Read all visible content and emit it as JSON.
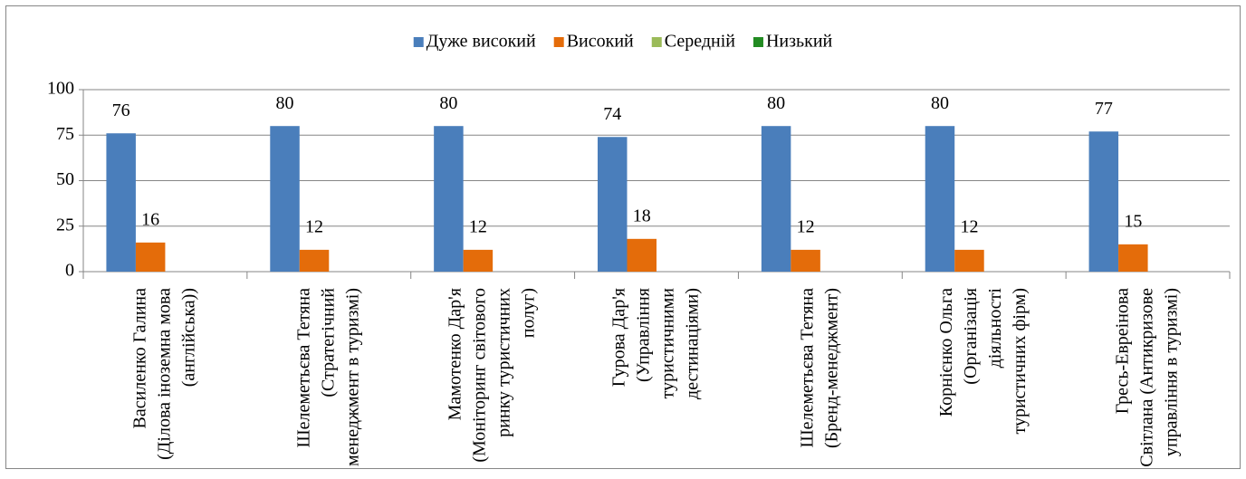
{
  "chart_data": {
    "type": "bar",
    "categories": [
      "Василенко Галина (Ділова іноземна мова (англійська))",
      "Шелеметьєва Тетяна (Стратегічний менеджмент в туризмі)",
      "Мамотенко Дар'я (Моніторинг світового ринку туристичних полуг)",
      "Гурова Дар'я (Управління туристичними дестинаціями)",
      "Шелеметьєва Тетяна (Бренд-менеджмент)",
      "Корнієнко Ольга (Організація діяльності туристичних фірм)",
      "Гресь-Евреінова Світлана (Антикризове управління в туризмі)"
    ],
    "series": [
      {
        "name": "Дуже високий",
        "color": "#4a7ebb",
        "values": [
          76,
          80,
          80,
          74,
          80,
          80,
          77
        ]
      },
      {
        "name": "Високий",
        "color": "#e46c0a",
        "values": [
          16,
          12,
          12,
          18,
          12,
          12,
          15
        ]
      },
      {
        "name": "Середній",
        "color": "#9bbb59",
        "values": [
          null,
          null,
          null,
          null,
          null,
          null,
          null
        ]
      },
      {
        "name": "Низький",
        "color": "#228b22",
        "values": [
          null,
          null,
          null,
          null,
          null,
          null,
          null
        ]
      }
    ],
    "ylim": [
      0,
      100
    ],
    "yticks": [
      0,
      25,
      50,
      75,
      100
    ],
    "grid": true,
    "legend": "top"
  }
}
